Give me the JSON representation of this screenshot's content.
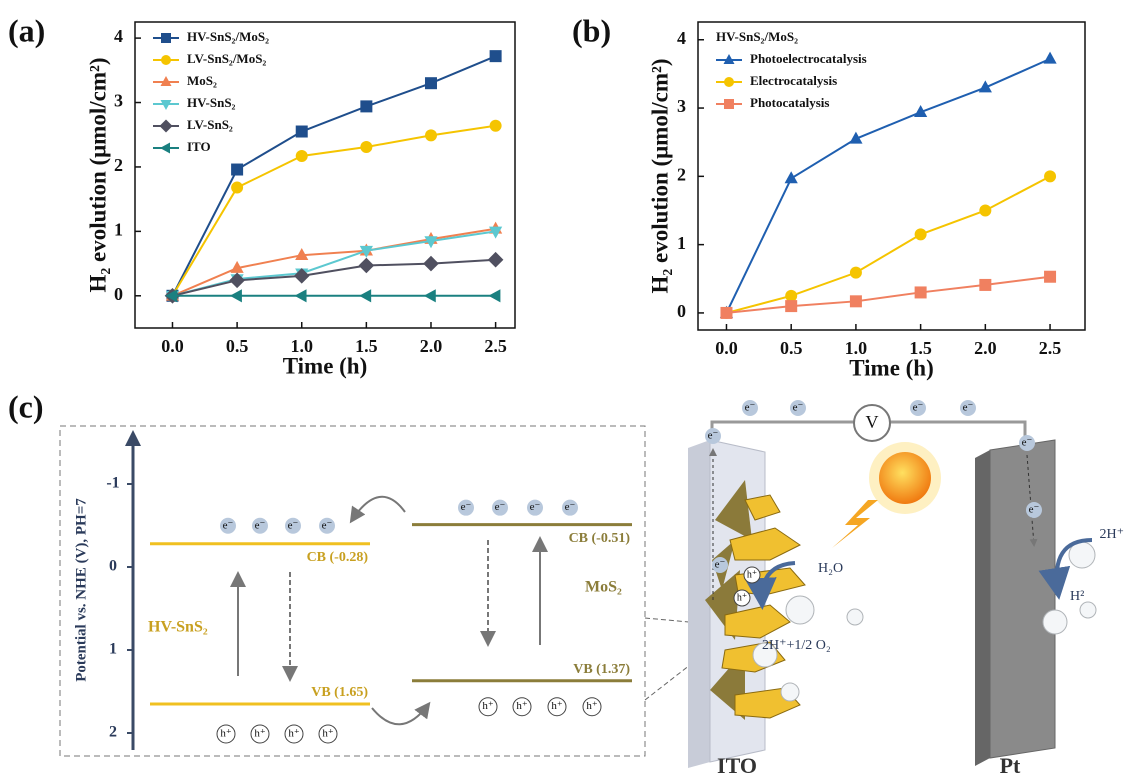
{
  "chart_data": [
    {
      "type": "line",
      "panel_label": "(a)",
      "x_label": "Time (h)",
      "y_label": "H₂ evolution (μmol/cm²)",
      "x": [
        0,
        0.5,
        1,
        1.5,
        2,
        2.5
      ],
      "xlim": [
        -0.29,
        2.65
      ],
      "ylim": [
        -0.5,
        4.25
      ],
      "xticks": [
        {
          "value": 0,
          "label": "0.0"
        },
        {
          "value": 0.5,
          "label": "0.5"
        },
        {
          "value": 1,
          "label": "1.0"
        },
        {
          "value": 1.5,
          "label": "1.5"
        },
        {
          "value": 2,
          "label": "2.0"
        },
        {
          "value": 2.5,
          "label": "2.5"
        }
      ],
      "yticks": [
        0,
        1,
        2,
        3,
        4
      ],
      "legend": "upper left",
      "series": [
        {
          "name": "HV-SnS₂/MoS₂",
          "color": "#1f4e8c",
          "marker": "square",
          "values": [
            0,
            1.96,
            2.55,
            2.94,
            3.3,
            3.72
          ]
        },
        {
          "name": "LV-SnS₂/MoS₂",
          "color": "#f5c400",
          "marker": "circle",
          "values": [
            0,
            1.68,
            2.17,
            2.31,
            2.49,
            2.64
          ]
        },
        {
          "name": "MoS₂",
          "color": "#f08050",
          "marker": "triangle-up",
          "values": [
            0,
            0.43,
            0.63,
            0.7,
            0.88,
            1.04
          ]
        },
        {
          "name": "HV-SnS₂",
          "color": "#5cc8d0",
          "marker": "triangle-down",
          "values": [
            0,
            0.26,
            0.35,
            0.7,
            0.85,
            1.0
          ]
        },
        {
          "name": "LV-SnS₂",
          "color": "#505060",
          "marker": "diamond",
          "values": [
            0,
            0.24,
            0.31,
            0.47,
            0.5,
            0.56
          ]
        },
        {
          "name": "ITO",
          "color": "#1a8080",
          "marker": "triangle-left",
          "values": [
            0,
            0,
            0,
            0,
            0,
            0
          ]
        }
      ]
    },
    {
      "type": "line",
      "panel_label": "(b)",
      "x_label": "Time (h)",
      "y_label": "H₂ evolution (μmol/cm²)",
      "x": [
        0,
        0.5,
        1,
        1.5,
        2,
        2.5
      ],
      "xlim": [
        -0.22,
        2.77
      ],
      "ylim": [
        -0.25,
        4.26
      ],
      "xticks": [
        {
          "value": 0,
          "label": "0.0"
        },
        {
          "value": 0.5,
          "label": "0.5"
        },
        {
          "value": 1,
          "label": "1.0"
        },
        {
          "value": 1.5,
          "label": "1.5"
        },
        {
          "value": 2,
          "label": "2.0"
        },
        {
          "value": 2.5,
          "label": "2.5"
        }
      ],
      "yticks": [
        0,
        1,
        2,
        3,
        4
      ],
      "legend": "upper left",
      "legend_title": "HV-SnS₂/MoS₂",
      "series": [
        {
          "name": "Photoelectrocatalysis",
          "color": "#1f5fb0",
          "marker": "triangle-up",
          "values": [
            0,
            1.97,
            2.55,
            2.94,
            3.3,
            3.72
          ]
        },
        {
          "name": "Electrocatalysis",
          "color": "#f5c400",
          "marker": "circle",
          "values": [
            0,
            0.25,
            0.59,
            1.15,
            1.5,
            2.0
          ]
        },
        {
          "name": "Photocatalysis",
          "color": "#f08060",
          "marker": "square",
          "values": [
            0,
            0.1,
            0.17,
            0.3,
            0.41,
            0.53
          ]
        }
      ]
    }
  ],
  "diagram": {
    "panel_label": "(c)",
    "axis_label": "Potential vs. NHE (V), PH=7",
    "potential_ticks": [
      -1,
      0,
      1,
      2
    ],
    "levels": [
      {
        "label": "CB (-0.28)",
        "value": -0.28
      },
      {
        "label": "VB (1.65)",
        "value": 1.65
      },
      {
        "label": "CB (-0.51)",
        "value": -0.51
      },
      {
        "label": "VB (1.37)",
        "value": 1.37
      }
    ],
    "materials": [
      "HV-SnS₂",
      "MoS₂"
    ],
    "electron": "e⁻",
    "hole": "h⁺",
    "voltmeter": "V",
    "water": "H₂O",
    "oxidation": "2H⁺+1/2 O₂",
    "protons": "2H⁺",
    "hydrogen": "H²",
    "electrodes": [
      "ITO",
      "Pt"
    ]
  }
}
